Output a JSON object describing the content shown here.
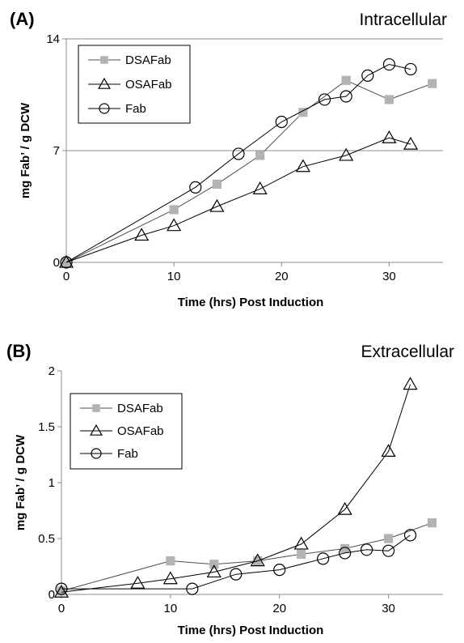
{
  "chart_data": [
    {
      "type": "line",
      "panel_label": "(A)",
      "title": "Intracellular",
      "xlabel": "Time (hrs) Post Induction",
      "ylabel": "mg Fab’ / g DCW",
      "xlim": [
        0,
        35
      ],
      "ylim": [
        0,
        14
      ],
      "xticks": [
        "0",
        "10",
        "20",
        "30"
      ],
      "xtick_values": [
        0,
        10,
        20,
        30
      ],
      "yticks": [
        "0",
        "7",
        "14"
      ],
      "ytick_values": [
        0,
        7,
        14
      ],
      "grid": "horizontal",
      "legend": "top-left",
      "series": [
        {
          "name": "DSAFab",
          "marker": "square",
          "color": "#b3b3b3",
          "x": [
            0,
            10,
            14,
            18,
            22,
            26,
            30,
            34
          ],
          "y": [
            0,
            3.3,
            4.9,
            6.7,
            9.4,
            11.4,
            10.2,
            11.2
          ]
        },
        {
          "name": "OSAFab",
          "marker": "triangle",
          "color": "#000000",
          "x": [
            0,
            7,
            10,
            14,
            18,
            22,
            26,
            30,
            32
          ],
          "y": [
            0,
            1.7,
            2.3,
            3.5,
            4.6,
            6.0,
            6.7,
            7.8,
            7.4
          ]
        },
        {
          "name": "Fab",
          "marker": "circle",
          "color": "#000000",
          "x": [
            0,
            12,
            16,
            20,
            24,
            26,
            28,
            30,
            32
          ],
          "y": [
            0,
            4.7,
            6.8,
            8.8,
            10.2,
            10.4,
            11.7,
            12.4,
            12.1
          ]
        }
      ]
    },
    {
      "type": "line",
      "panel_label": "(B)",
      "title": "Extracellular",
      "xlabel": "Time (hrs) Post Induction",
      "ylabel": "mg Fab’ / g DCW",
      "xlim": [
        0,
        35
      ],
      "ylim": [
        0,
        2
      ],
      "xticks": [
        "0",
        "10",
        "20",
        "30"
      ],
      "xtick_values": [
        0,
        10,
        20,
        30
      ],
      "yticks": [
        "0",
        "0.5",
        "1",
        "1.5",
        "2"
      ],
      "ytick_values": [
        0,
        0.5,
        1,
        1.5,
        2
      ],
      "grid": "none",
      "legend": "top-left",
      "series": [
        {
          "name": "DSAFab",
          "marker": "square",
          "color": "#b3b3b3",
          "x": [
            0,
            10,
            14,
            18,
            22,
            26,
            30,
            34
          ],
          "y": [
            0.03,
            0.3,
            0.27,
            0.3,
            0.36,
            0.41,
            0.5,
            0.64
          ]
        },
        {
          "name": "OSAFab",
          "marker": "triangle",
          "color": "#000000",
          "x": [
            0,
            7,
            10,
            14,
            18,
            22,
            26,
            30,
            32
          ],
          "y": [
            0.02,
            0.1,
            0.14,
            0.2,
            0.3,
            0.45,
            0.76,
            1.28,
            1.88
          ]
        },
        {
          "name": "Fab",
          "marker": "circle",
          "color": "#000000",
          "x": [
            0,
            12,
            16,
            20,
            24,
            26,
            28,
            30,
            32
          ],
          "y": [
            0.05,
            0.05,
            0.18,
            0.22,
            0.32,
            0.37,
            0.4,
            0.39,
            0.53
          ]
        }
      ]
    }
  ]
}
